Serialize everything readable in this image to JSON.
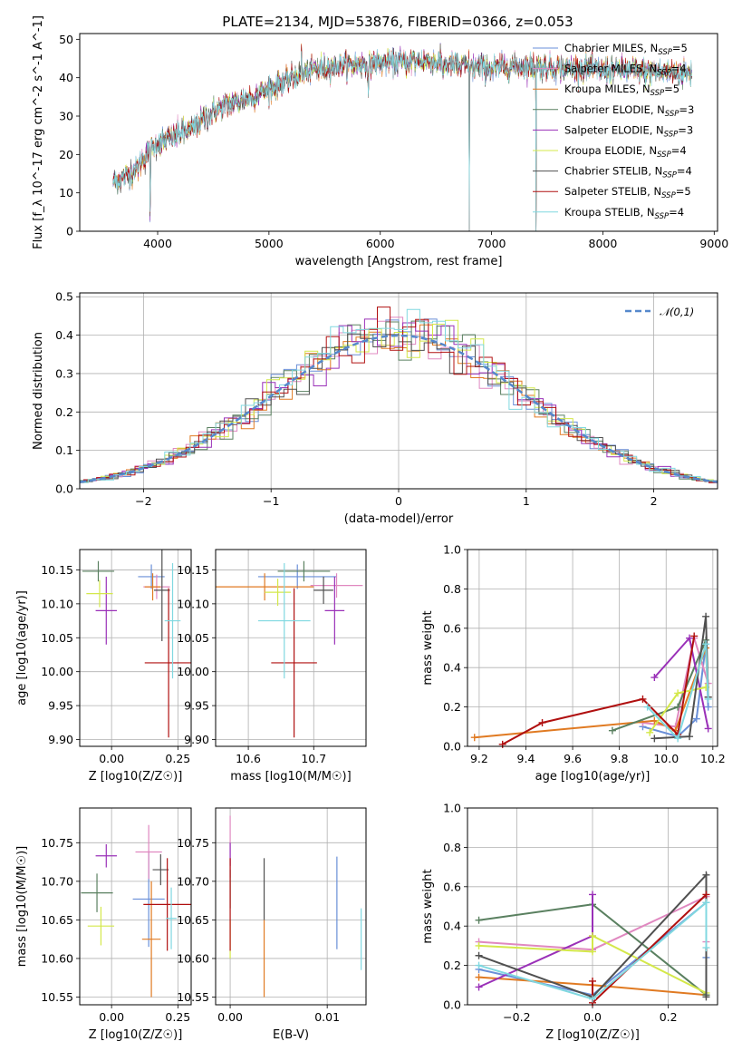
{
  "figure": {
    "title": "PLATE=2134, MJD=53876, FIBERID=0366, z=0.053"
  },
  "colors": {
    "Chabrier MILES": "#6a8fd8",
    "Salpeter MILES": "#e088c0",
    "Kroupa MILES": "#e07a22",
    "Chabrier ELODIE": "#5a8060",
    "Salpeter ELODIE": "#9a30b8",
    "Kroupa ELODIE": "#d4e84a",
    "Chabrier STELIB": "#505050",
    "Salpeter STELIB": "#b01010",
    "Kroupa STELIB": "#80d8e0"
  },
  "chart_data": [
    {
      "id": "spectrum",
      "type": "line",
      "title": "PLATE=2134, MJD=53876, FIBERID=0366, z=0.053",
      "xlabel": "wavelength [Angstrom, rest frame]",
      "ylabel": "Flux [f_λ 10^-17 erg cm^-2 s^-1 A^-1]",
      "xlim": [
        3300,
        9030
      ],
      "ylim": [
        0,
        51.5
      ],
      "xticks": [
        4000,
        5000,
        6000,
        7000,
        8000,
        9000
      ],
      "yticks": [
        0,
        10,
        20,
        30,
        40,
        50
      ],
      "grid": false,
      "legend_position": "top-right",
      "legend": [
        {
          "name": "Chabrier MILES",
          "nssp": "5"
        },
        {
          "name": "Salpeter MILES",
          "nssp": "4"
        },
        {
          "name": "Kroupa MILES",
          "nssp": "5"
        },
        {
          "name": "Chabrier ELODIE",
          "nssp": "3"
        },
        {
          "name": "Salpeter ELODIE",
          "nssp": "3"
        },
        {
          "name": "Kroupa ELODIE",
          "nssp": "4"
        },
        {
          "name": "Chabrier STELIB",
          "nssp": "4"
        },
        {
          "name": "Salpeter STELIB",
          "nssp": "5"
        },
        {
          "name": "Kroupa STELIB",
          "nssp": "4"
        }
      ],
      "continuum": {
        "x": [
          3600,
          3700,
          3800,
          3900,
          4000,
          4100,
          4200,
          4300,
          4400,
          4500,
          4600,
          4800,
          5000,
          5200,
          5400,
          5600,
          5800,
          6000,
          6200,
          6400,
          6600,
          6800,
          7000,
          7200,
          7400,
          7600,
          7800,
          8000,
          8200,
          8400,
          8600,
          8800
        ],
        "y": [
          13,
          14,
          16,
          20,
          23,
          24,
          25.5,
          26.5,
          29,
          31,
          32.5,
          34.5,
          37,
          40,
          42,
          43,
          43.5,
          44,
          44,
          44.5,
          43.5,
          43,
          42.5,
          43,
          43,
          42.5,
          42.5,
          42,
          42,
          41.5,
          41.5,
          41
        ]
      },
      "features": [
        {
          "x": 3933,
          "y": 0,
          "width": 5
        },
        {
          "x": 4861,
          "y": 33,
          "width": 8
        },
        {
          "x": 5175,
          "y": 38,
          "width": 10
        },
        {
          "x": 5293,
          "y": 50,
          "width": 4
        },
        {
          "x": 5893,
          "y": 34,
          "width": 8
        },
        {
          "x": 6563,
          "y": 39,
          "width": 6
        },
        {
          "x": 6800,
          "y": 0,
          "width": 4
        },
        {
          "x": 7400,
          "y": 0,
          "width": 4
        }
      ]
    },
    {
      "id": "residuals",
      "type": "histogram",
      "xlabel": "(data-model)/error",
      "ylabel": "Normed distribution",
      "xlim": [
        -2.5,
        2.5
      ],
      "ylim": [
        0,
        0.51
      ],
      "xticks": [
        -2,
        -1,
        0,
        1,
        2
      ],
      "yticks": [
        0.0,
        0.1,
        0.2,
        0.3,
        0.4,
        0.5
      ],
      "grid": true,
      "legend_position": "top-right",
      "reference_curve": {
        "label": "𝒩(0,1)",
        "mean": 0,
        "sigma": 1,
        "color": "#5588cc",
        "style": "dashed"
      },
      "bin_width": 0.1
    },
    {
      "id": "age_vs_Z",
      "type": "scatter",
      "xlabel": "Z [log10(Z/Z☉)]",
      "ylabel": "age [log10(age/yr)]",
      "xlim": [
        -0.12,
        0.3
      ],
      "ylim": [
        9.89,
        10.18
      ],
      "xticks": [
        0.0,
        0.25
      ],
      "xtick_labels": [
        "0.00",
        "0.25"
      ],
      "yticks": [
        9.9,
        9.95,
        10.0,
        10.05,
        10.1,
        10.15
      ],
      "grid": true,
      "points": [
        {
          "series": "Chabrier MILES",
          "x": 0.15,
          "y": 10.14,
          "xerr": 0.05,
          "yerr": 0.018
        },
        {
          "series": "Salpeter MILES",
          "x": 0.17,
          "y": 10.125,
          "xerr": 0.05,
          "yerr": 0.018
        },
        {
          "series": "Kroupa MILES",
          "x": 0.155,
          "y": 10.125,
          "xerr": 0.03,
          "yerr": 0.02
        },
        {
          "series": "Chabrier ELODIE",
          "x": -0.05,
          "y": 10.148,
          "xerr": 0.06,
          "yerr": 0.015
        },
        {
          "series": "Salpeter ELODIE",
          "x": -0.02,
          "y": 10.09,
          "xerr": 0.04,
          "yerr": 0.05
        },
        {
          "series": "Kroupa ELODIE",
          "x": -0.045,
          "y": 10.115,
          "xerr": 0.05,
          "yerr": 0.02
        },
        {
          "series": "Chabrier STELIB",
          "x": 0.19,
          "y": 10.12,
          "xerr": 0.03,
          "yerr": 0.075
        },
        {
          "series": "Salpeter STELIB",
          "x": 0.215,
          "y": 10.013,
          "xerr": 0.09,
          "yerr": 0.11
        },
        {
          "series": "Kroupa STELIB",
          "x": 0.23,
          "y": 10.075,
          "xerr": 0.03,
          "yerr": 0.085
        }
      ]
    },
    {
      "id": "age_vs_mass",
      "type": "scatter",
      "xlabel": "mass [log10(M/M☉)]",
      "ylabel": "",
      "xlim": [
        10.55,
        10.78
      ],
      "ylim": [
        9.89,
        10.18
      ],
      "xticks": [
        10.6,
        10.7
      ],
      "xtick_labels": [
        "10.6",
        "10.7"
      ],
      "yticks": [
        9.9,
        9.95,
        10.0,
        10.05,
        10.1,
        10.15
      ],
      "grid": true,
      "points": [
        {
          "series": "Chabrier MILES",
          "x": 10.675,
          "y": 10.14,
          "xerr": 0.06,
          "yerr": 0.018
        },
        {
          "series": "Salpeter MILES",
          "x": 10.735,
          "y": 10.127,
          "xerr": 0.04,
          "yerr": 0.018
        },
        {
          "series": "Kroupa MILES",
          "x": 10.625,
          "y": 10.125,
          "xerr": 0.075,
          "yerr": 0.02
        },
        {
          "series": "Chabrier ELODIE",
          "x": 10.685,
          "y": 10.148,
          "xerr": 0.04,
          "yerr": 0.015
        },
        {
          "series": "Salpeter ELODIE",
          "x": 10.732,
          "y": 10.09,
          "xerr": 0.015,
          "yerr": 0.05
        },
        {
          "series": "Kroupa ELODIE",
          "x": 10.645,
          "y": 10.117,
          "xerr": 0.02,
          "yerr": 0.02
        },
        {
          "series": "Chabrier STELIB",
          "x": 10.715,
          "y": 10.12,
          "xerr": 0.015,
          "yerr": 0.02
        },
        {
          "series": "Salpeter STELIB",
          "x": 10.67,
          "y": 10.013,
          "xerr": 0.035,
          "yerr": 0.11
        },
        {
          "series": "Kroupa STELIB",
          "x": 10.655,
          "y": 10.075,
          "xerr": 0.04,
          "yerr": 0.085
        }
      ]
    },
    {
      "id": "massweight_vs_age",
      "type": "line",
      "xlabel": "age [log10(age/yr)]",
      "ylabel": "mass weight",
      "xlim": [
        9.15,
        10.22
      ],
      "ylim": [
        0.0,
        1.0
      ],
      "xticks": [
        9.2,
        9.4,
        9.6,
        9.8,
        10.0,
        10.2
      ],
      "xtick_labels": [
        "9.2",
        "9.4",
        "9.6",
        "9.8",
        "10.0",
        "10.2"
      ],
      "yticks": [
        0.0,
        0.2,
        0.4,
        0.6,
        0.8,
        1.0
      ],
      "grid": true,
      "series": [
        {
          "name": "Chabrier MILES",
          "x": [
            9.9,
            10.05,
            10.13,
            10.17,
            10.18
          ],
          "y": [
            0.1,
            0.05,
            0.14,
            0.52,
            0.2
          ]
        },
        {
          "name": "Salpeter MILES",
          "x": [
            9.9,
            10.04,
            10.12,
            10.18
          ],
          "y": [
            0.12,
            0.1,
            0.55,
            0.32
          ]
        },
        {
          "name": "Kroupa MILES",
          "x": [
            9.18,
            9.95,
            10.04,
            10.17,
            10.18
          ],
          "y": [
            0.045,
            0.13,
            0.08,
            0.5,
            0.25
          ]
        },
        {
          "name": "Chabrier ELODIE",
          "x": [
            9.77,
            10.05,
            10.17
          ],
          "y": [
            0.08,
            0.2,
            0.54
          ]
        },
        {
          "name": "Salpeter ELODIE",
          "x": [
            9.95,
            10.1,
            10.18
          ],
          "y": [
            0.35,
            0.55,
            0.09
          ]
        },
        {
          "name": "Kroupa ELODIE",
          "x": [
            9.93,
            10.05,
            10.17
          ],
          "y": [
            0.07,
            0.27,
            0.3
          ]
        },
        {
          "name": "Chabrier STELIB",
          "x": [
            9.95,
            10.1,
            10.17,
            10.18
          ],
          "y": [
            0.04,
            0.05,
            0.66,
            0.25
          ]
        },
        {
          "name": "Salpeter STELIB",
          "x": [
            9.3,
            9.47,
            9.9,
            10.05,
            10.12
          ],
          "y": [
            0.01,
            0.12,
            0.24,
            0.06,
            0.56
          ]
        },
        {
          "name": "Kroupa STELIB",
          "x": [
            9.92,
            10.05,
            10.17,
            10.18
          ],
          "y": [
            0.2,
            0.04,
            0.52,
            0.24
          ]
        }
      ]
    },
    {
      "id": "mass_vs_Z",
      "type": "scatter",
      "xlabel": "Z [log10(Z/Z☉)]",
      "ylabel": "mass [log10(M/M☉)]",
      "xlim": [
        -0.12,
        0.3
      ],
      "ylim": [
        10.54,
        10.795
      ],
      "xticks": [
        0.0,
        0.25
      ],
      "xtick_labels": [
        "0.00",
        "0.25"
      ],
      "yticks": [
        10.55,
        10.6,
        10.65,
        10.7,
        10.75
      ],
      "grid": true,
      "points": [
        {
          "series": "Chabrier MILES",
          "x": 0.14,
          "y": 10.677,
          "xerr": 0.06,
          "yerr": 0.062
        },
        {
          "series": "Salpeter MILES",
          "x": 0.14,
          "y": 10.738,
          "xerr": 0.05,
          "yerr": 0.035
        },
        {
          "series": "Kroupa MILES",
          "x": 0.15,
          "y": 10.625,
          "xerr": 0.035,
          "yerr": 0.075
        },
        {
          "series": "Chabrier ELODIE",
          "x": -0.055,
          "y": 10.685,
          "xerr": 0.06,
          "yerr": 0.025
        },
        {
          "series": "Salpeter ELODIE",
          "x": -0.02,
          "y": 10.733,
          "xerr": 0.04,
          "yerr": 0.015
        },
        {
          "series": "Kroupa ELODIE",
          "x": -0.04,
          "y": 10.642,
          "xerr": 0.05,
          "yerr": 0.025
        },
        {
          "series": "Chabrier STELIB",
          "x": 0.185,
          "y": 10.715,
          "xerr": 0.03,
          "yerr": 0.02
        },
        {
          "series": "Salpeter STELIB",
          "x": 0.21,
          "y": 10.67,
          "xerr": 0.09,
          "yerr": 0.06
        },
        {
          "series": "Kroupa STELIB",
          "x": 0.225,
          "y": 10.652,
          "xerr": 0.02,
          "yerr": 0.04
        }
      ]
    },
    {
      "id": "mass_vs_ebv",
      "type": "scatter",
      "xlabel": "E(B-V)",
      "ylabel": "",
      "xlim": [
        -0.0015,
        0.014
      ],
      "ylim": [
        10.54,
        10.795
      ],
      "xticks": [
        0.0,
        0.01
      ],
      "xtick_labels": [
        "0.00",
        "0.01"
      ],
      "yticks": [
        10.55,
        10.6,
        10.65,
        10.7,
        10.75
      ],
      "grid": true,
      "points": [
        {
          "series": "Chabrier MILES",
          "x": 0.011,
          "y": 10.672,
          "xerr": 0,
          "yerr": 0.06
        },
        {
          "series": "Salpeter MILES",
          "x": 0.0,
          "y": 10.745,
          "xerr": 0,
          "yerr": 0.04
        },
        {
          "series": "Kroupa MILES",
          "x": 0.0035,
          "y": 10.6,
          "xerr": 0,
          "yerr": 0.05
        },
        {
          "series": "Chabrier ELODIE",
          "x": 0.0,
          "y": 10.69,
          "xerr": 0,
          "yerr": 0.025
        },
        {
          "series": "Salpeter ELODIE",
          "x": 0.0,
          "y": 10.735,
          "xerr": 0,
          "yerr": 0.015
        },
        {
          "series": "Kroupa ELODIE",
          "x": 0.0,
          "y": 10.625,
          "xerr": 0,
          "yerr": 0.025
        },
        {
          "series": "Chabrier STELIB",
          "x": 0.0035,
          "y": 10.69,
          "xerr": 0,
          "yerr": 0.04
        },
        {
          "series": "Salpeter STELIB",
          "x": 0.0,
          "y": 10.67,
          "xerr": 0,
          "yerr": 0.06
        },
        {
          "series": "Kroupa STELIB",
          "x": 0.0135,
          "y": 10.625,
          "xerr": 0,
          "yerr": 0.04
        }
      ]
    },
    {
      "id": "massweight_vs_Z",
      "type": "line",
      "xlabel": "Z [log10(Z/Z☉)]",
      "ylabel": "mass weight",
      "xlim": [
        -0.33,
        0.33
      ],
      "ylim": [
        0.0,
        1.0
      ],
      "xticks": [
        -0.2,
        0.0,
        0.2
      ],
      "xtick_labels": [
        "−0.2",
        "0.0",
        "0.2"
      ],
      "yticks": [
        0.0,
        0.2,
        0.4,
        0.6,
        0.8,
        1.0
      ],
      "grid": true,
      "series": [
        {
          "name": "Chabrier MILES",
          "x": [
            -0.3,
            0.0,
            0.3,
            0.3
          ],
          "y": [
            0.18,
            0.05,
            0.52,
            0.24
          ]
        },
        {
          "name": "Salpeter MILES",
          "x": [
            -0.3,
            0.0,
            0.3,
            0.3
          ],
          "y": [
            0.32,
            0.28,
            0.55,
            0.32
          ]
        },
        {
          "name": "Kroupa MILES",
          "x": [
            -0.3,
            0.0,
            0.3
          ],
          "y": [
            0.14,
            0.1,
            0.05
          ]
        },
        {
          "name": "Chabrier ELODIE",
          "x": [
            -0.3,
            0.0,
            0.3
          ],
          "y": [
            0.43,
            0.51,
            0.05
          ]
        },
        {
          "name": "Salpeter ELODIE",
          "x": [
            -0.3,
            0.0,
            0.0
          ],
          "y": [
            0.09,
            0.35,
            0.56
          ]
        },
        {
          "name": "Kroupa ELODIE",
          "x": [
            -0.3,
            0.0,
            0.0,
            0.3
          ],
          "y": [
            0.3,
            0.27,
            0.35,
            0.06
          ]
        },
        {
          "name": "Chabrier STELIB",
          "x": [
            -0.3,
            0.0,
            0.3,
            0.3
          ],
          "y": [
            0.25,
            0.04,
            0.66,
            0.04
          ]
        },
        {
          "name": "Salpeter STELIB",
          "x": [
            0.0,
            0.0,
            0.3
          ],
          "y": [
            0.12,
            0.01,
            0.56
          ]
        },
        {
          "name": "Kroupa STELIB",
          "x": [
            -0.3,
            0.0,
            0.3,
            0.3
          ],
          "y": [
            0.2,
            0.03,
            0.52,
            0.29
          ]
        }
      ]
    }
  ]
}
